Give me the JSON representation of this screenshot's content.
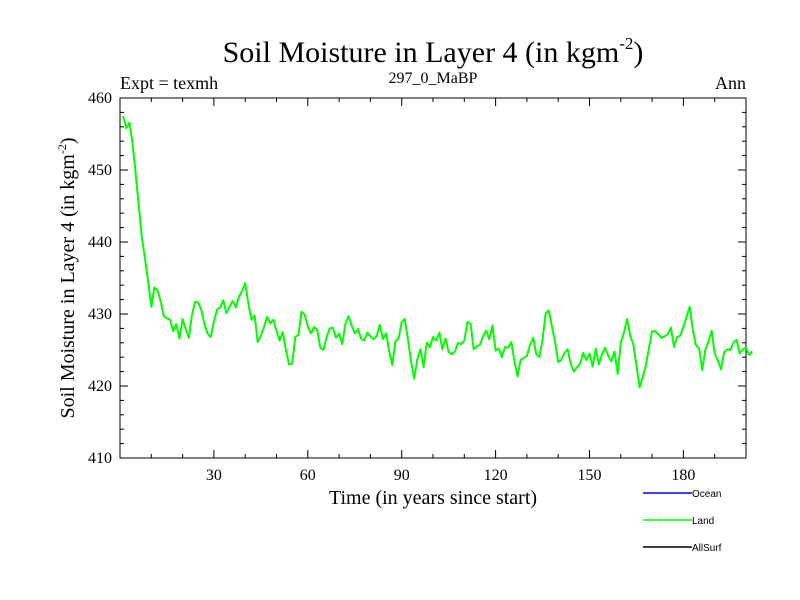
{
  "chart_data": {
    "type": "line",
    "title_main": "Soil Moisture in Layer 4 (in kgm",
    "title_sup": "-2",
    "title_close": ")",
    "expt_label": "Expt = texmh",
    "subtitle": "297_0_MaBP",
    "period": "Ann",
    "xlabel": "Time (in years since start)",
    "ylabel_main": "Soil Moisture in Layer 4 (in kgm",
    "ylabel_sup": "-2",
    "ylabel_close": ")",
    "xlim": [
      0,
      200
    ],
    "ylim": [
      410,
      460
    ],
    "xticks": [
      30,
      60,
      90,
      120,
      150,
      180
    ],
    "yticks": [
      410,
      420,
      430,
      440,
      450,
      460
    ],
    "legend": [
      {
        "name": "Ocean",
        "color": "#0000ff"
      },
      {
        "name": "Land",
        "color": "#00ff00"
      },
      {
        "name": "AllSurf",
        "color": "#000000"
      }
    ],
    "series": [
      {
        "name": "Land",
        "color": "#00ff00",
        "x_start": 1,
        "x_step": 1,
        "values": [
          457.5,
          455.8,
          456.6,
          453.8,
          449.5,
          445.0,
          440.6,
          437.7,
          434.5,
          431.0,
          433.7,
          433.3,
          431.7,
          429.7,
          429.4,
          429.2,
          427.6,
          428.6,
          426.6,
          429.3,
          427.9,
          426.7,
          429.9,
          431.7,
          431.6,
          430.5,
          428.6,
          427.3,
          426.8,
          429.0,
          430.6,
          430.9,
          431.9,
          430.1,
          431.0,
          431.8,
          430.9,
          432.4,
          433.2,
          434.3,
          431.5,
          429.2,
          429.8,
          426.1,
          427.0,
          428.2,
          429.6,
          428.7,
          429.2,
          427.7,
          426.3,
          427.5,
          425.0,
          423.0,
          423.1,
          426.8,
          427.1,
          430.3,
          429.9,
          428.3,
          427.3,
          428.2,
          427.8,
          425.3,
          425.0,
          426.8,
          428.0,
          428.1,
          426.7,
          427.3,
          425.8,
          428.6,
          429.7,
          428.4,
          427.3,
          427.9,
          426.6,
          426.3,
          427.4,
          426.9,
          426.5,
          426.9,
          428.5,
          426.5,
          427.3,
          424.8,
          422.9,
          426.2,
          426.6,
          428.9,
          429.3,
          426.4,
          423.4,
          421.0,
          423.7,
          425.1,
          422.6,
          426.0,
          425.4,
          426.8,
          426.3,
          427.4,
          425.1,
          426.6,
          424.7,
          424.4,
          424.8,
          426.0,
          425.8,
          426.3,
          428.9,
          428.6,
          425.1,
          425.5,
          425.7,
          426.9,
          427.7,
          426.5,
          428.4,
          424.9,
          425.2,
          424.0,
          425.4,
          425.3,
          426.1,
          423.5,
          421.3,
          423.6,
          423.9,
          424.2,
          425.7,
          426.7,
          424.4,
          424.0,
          426.4,
          430.1,
          430.5,
          428.3,
          426.1,
          423.3,
          423.6,
          424.6,
          425.1,
          423.1,
          422.0,
          422.6,
          423.1,
          424.6,
          423.6,
          424.5,
          422.7,
          425.2,
          423.0,
          424.4,
          425.3,
          424.2,
          423.4,
          424.8,
          421.7,
          426.0,
          427.4,
          429.3,
          427.0,
          425.8,
          422.9,
          419.8,
          421.2,
          422.8,
          425.3,
          427.6,
          427.6,
          427.2,
          426.7,
          426.9,
          427.2,
          428.1,
          425.4,
          426.8,
          427.0,
          428.2,
          429.6,
          431.0,
          427.8,
          425.7,
          425.2,
          422.2,
          425.0,
          426.1,
          427.7,
          424.5,
          423.6,
          422.3,
          424.7,
          425.1,
          425.0,
          426.1,
          426.4,
          424.5,
          425.1,
          425.3,
          424.3,
          424.8
        ]
      }
    ]
  }
}
